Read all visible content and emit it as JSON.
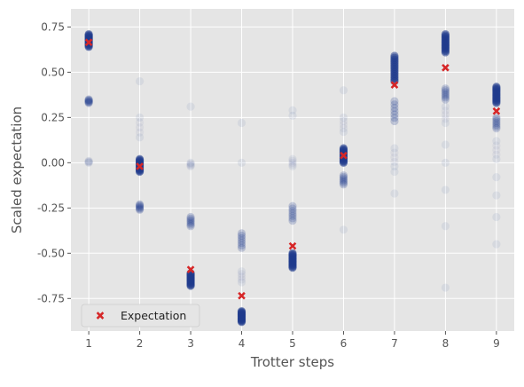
{
  "chart_data": {
    "type": "scatter",
    "xlabel": "Trotter steps",
    "ylabel": "Scaled expectation",
    "xlim": [
      0.65,
      9.35
    ],
    "ylim": [
      -0.93,
      0.85
    ],
    "x_ticks": [
      "1",
      "2",
      "3",
      "4",
      "5",
      "6",
      "7",
      "8",
      "9"
    ],
    "y_ticks": [
      "0.75",
      "0.50",
      "0.25",
      "0.00",
      "-0.25",
      "-0.50",
      "-0.75"
    ],
    "y_tick_values": [
      0.75,
      0.5,
      0.25,
      0.0,
      -0.25,
      -0.5,
      -0.75
    ],
    "grid": true,
    "legend_position": "lower-left",
    "series": [
      {
        "name": "Expectation",
        "marker": "x",
        "color": "#d62728",
        "points": [
          {
            "x": 1,
            "y": 0.665
          },
          {
            "x": 2,
            "y": -0.02
          },
          {
            "x": 3,
            "y": -0.59
          },
          {
            "x": 4,
            "y": -0.735
          },
          {
            "x": 5,
            "y": -0.46
          },
          {
            "x": 6,
            "y": 0.04
          },
          {
            "x": 7,
            "y": 0.43
          },
          {
            "x": 8,
            "y": 0.525
          },
          {
            "x": 9,
            "y": 0.285
          }
        ]
      },
      {
        "marker": "o",
        "color": "#1f3b8c",
        "clusters": [
          {
            "x": 1,
            "dense": [
              0.64,
              0.71
            ],
            "strong": [
              0.33,
              0.35
            ],
            "faint": [
              0.0,
              0.01
            ]
          },
          {
            "x": 2,
            "dense": [
              -0.05,
              0.02
            ],
            "strong": [
              -0.26,
              -0.23
            ],
            "faint": [
              0.14,
              0.25,
              0.45
            ]
          },
          {
            "x": 3,
            "dense": [
              -0.68,
              -0.61
            ],
            "strong": [
              -0.35,
              -0.3
            ],
            "faint": [
              -0.02,
              0.0,
              0.31
            ]
          },
          {
            "x": 4,
            "dense": [
              -0.88,
              -0.82
            ],
            "strong": [
              -0.47,
              -0.39
            ],
            "faint": [
              -0.66,
              -0.6,
              0.0,
              0.22
            ]
          },
          {
            "x": 5,
            "dense": [
              -0.58,
              -0.5
            ],
            "strong": [
              -0.32,
              -0.24
            ],
            "faint": [
              -0.02,
              0.02,
              0.26,
              0.29
            ]
          },
          {
            "x": 6,
            "dense": [
              0.0,
              0.08
            ],
            "strong": [
              -0.12,
              -0.07
            ],
            "faint": [
              0.17,
              0.25,
              -0.37,
              0.4
            ]
          },
          {
            "x": 7,
            "dense": [
              0.45,
              0.59
            ],
            "strong": [
              0.23,
              0.34
            ],
            "faint": [
              -0.02,
              0.08,
              -0.17,
              -0.05
            ]
          },
          {
            "x": 8,
            "dense": [
              0.61,
              0.71
            ],
            "strong": [
              0.35,
              0.41
            ],
            "faint": [
              0.22,
              0.31,
              0.0,
              0.1,
              -0.15,
              -0.35,
              -0.69
            ]
          },
          {
            "x": 9,
            "dense": [
              0.33,
              0.42
            ],
            "strong": [
              0.19,
              0.25
            ],
            "faint": [
              0.02,
              0.12,
              -0.08,
              -0.18,
              -0.3,
              -0.45
            ]
          }
        ]
      }
    ]
  }
}
